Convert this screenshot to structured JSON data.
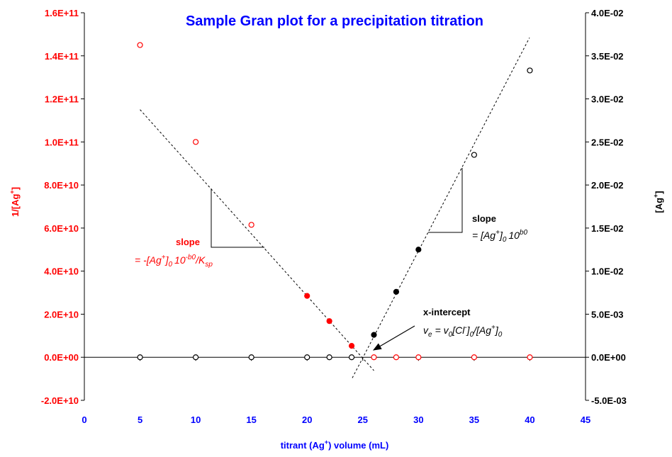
{
  "chart_data": {
    "type": "scatter",
    "title": "Sample Gran plot for a precipitation titration",
    "xlabel": "titrant (Ag+) volume (mL)",
    "xlabel_parts": {
      "pre": "titrant (Ag",
      "sup": "+",
      "post": ") volume (mL)"
    },
    "ylabel_left": "1/[Ag+]",
    "ylabel_left_parts": {
      "pre": "1/[Ag",
      "sup": "+",
      "post": "]"
    },
    "ylabel_right": "[Ag+]",
    "ylabel_right_parts": {
      "pre": "[Ag",
      "sup": "+",
      "post": "]"
    },
    "xlim": [
      0,
      45
    ],
    "ylim_left": [
      -20000000000.0,
      160000000000.0
    ],
    "ylim_right": [
      -0.005,
      0.04
    ],
    "x_ticks": [
      "0",
      "5",
      "10",
      "15",
      "20",
      "25",
      "30",
      "35",
      "40",
      "45"
    ],
    "y_left_ticks": [
      "1.6E+11",
      "1.4E+11",
      "1.2E+11",
      "1.0E+11",
      "8.0E+10",
      "6.0E+10",
      "4.0E+10",
      "2.0E+10",
      "0.0E+00",
      "-2.0E+10"
    ],
    "y_right_ticks": [
      "4.0E-02",
      "3.5E-02",
      "3.0E-02",
      "2.5E-02",
      "2.0E-02",
      "1.5E-02",
      "1.0E-02",
      "5.0E-03",
      "0.0E+00",
      "-5.0E-03"
    ],
    "series": [
      {
        "name": "1/[Ag+]",
        "axis": "left",
        "color": "#ff0000",
        "points": [
          [
            5,
            145000000000.0,
            "open"
          ],
          [
            10,
            100000000000.0,
            "open"
          ],
          [
            15,
            61500000000.0,
            "open"
          ],
          [
            20,
            28500000000.0,
            "filled"
          ],
          [
            22,
            16800000000.0,
            "filled"
          ],
          [
            24,
            5300000000.0,
            "filled"
          ],
          [
            26,
            0,
            "open"
          ],
          [
            28,
            0,
            "open"
          ],
          [
            30,
            0,
            "open"
          ],
          [
            35,
            0,
            "open"
          ],
          [
            40,
            0,
            "open"
          ]
        ]
      },
      {
        "name": "[Ag+]",
        "axis": "right",
        "color": "#000000",
        "points": [
          [
            5,
            0,
            "open"
          ],
          [
            10,
            0,
            "open"
          ],
          [
            15,
            0,
            "open"
          ],
          [
            20,
            0,
            "open"
          ],
          [
            22,
            0,
            "open"
          ],
          [
            24,
            0,
            "open"
          ],
          [
            26,
            0.0026,
            "filled"
          ],
          [
            28,
            0.0076,
            "filled"
          ],
          [
            30,
            0.0125,
            "filled"
          ],
          [
            35,
            0.0235,
            "open"
          ],
          [
            40,
            0.0333,
            "open"
          ]
        ]
      }
    ],
    "fit_lines": [
      {
        "axis": "left",
        "from": [
          5,
          115000000000.0
        ],
        "to": [
          26,
          -6200000000.0
        ]
      },
      {
        "axis": "right",
        "from": [
          24.06,
          -0.0024
        ],
        "to": [
          39.97,
          0.0371
        ]
      }
    ],
    "annotations": {
      "left_slope": {
        "label": "slope",
        "eq": [
          "= -[Ag",
          "+",
          "]",
          "0",
          "10",
          "-b0",
          "/K",
          "sp"
        ]
      },
      "right_slope": {
        "label": "slope",
        "eq": [
          "= [Ag",
          "+",
          "]",
          "0",
          "10",
          "b0"
        ]
      },
      "intercept": {
        "label": "x-intercept",
        "eq": [
          "v",
          "e",
          "= v",
          "0",
          "[Cl",
          "-",
          "]",
          "0",
          "/[Ag",
          "+",
          "]",
          "0"
        ]
      }
    },
    "colors": {
      "title": "#0000ff",
      "left": "#ff0000",
      "right": "#000000",
      "x": "#0000ff"
    }
  }
}
